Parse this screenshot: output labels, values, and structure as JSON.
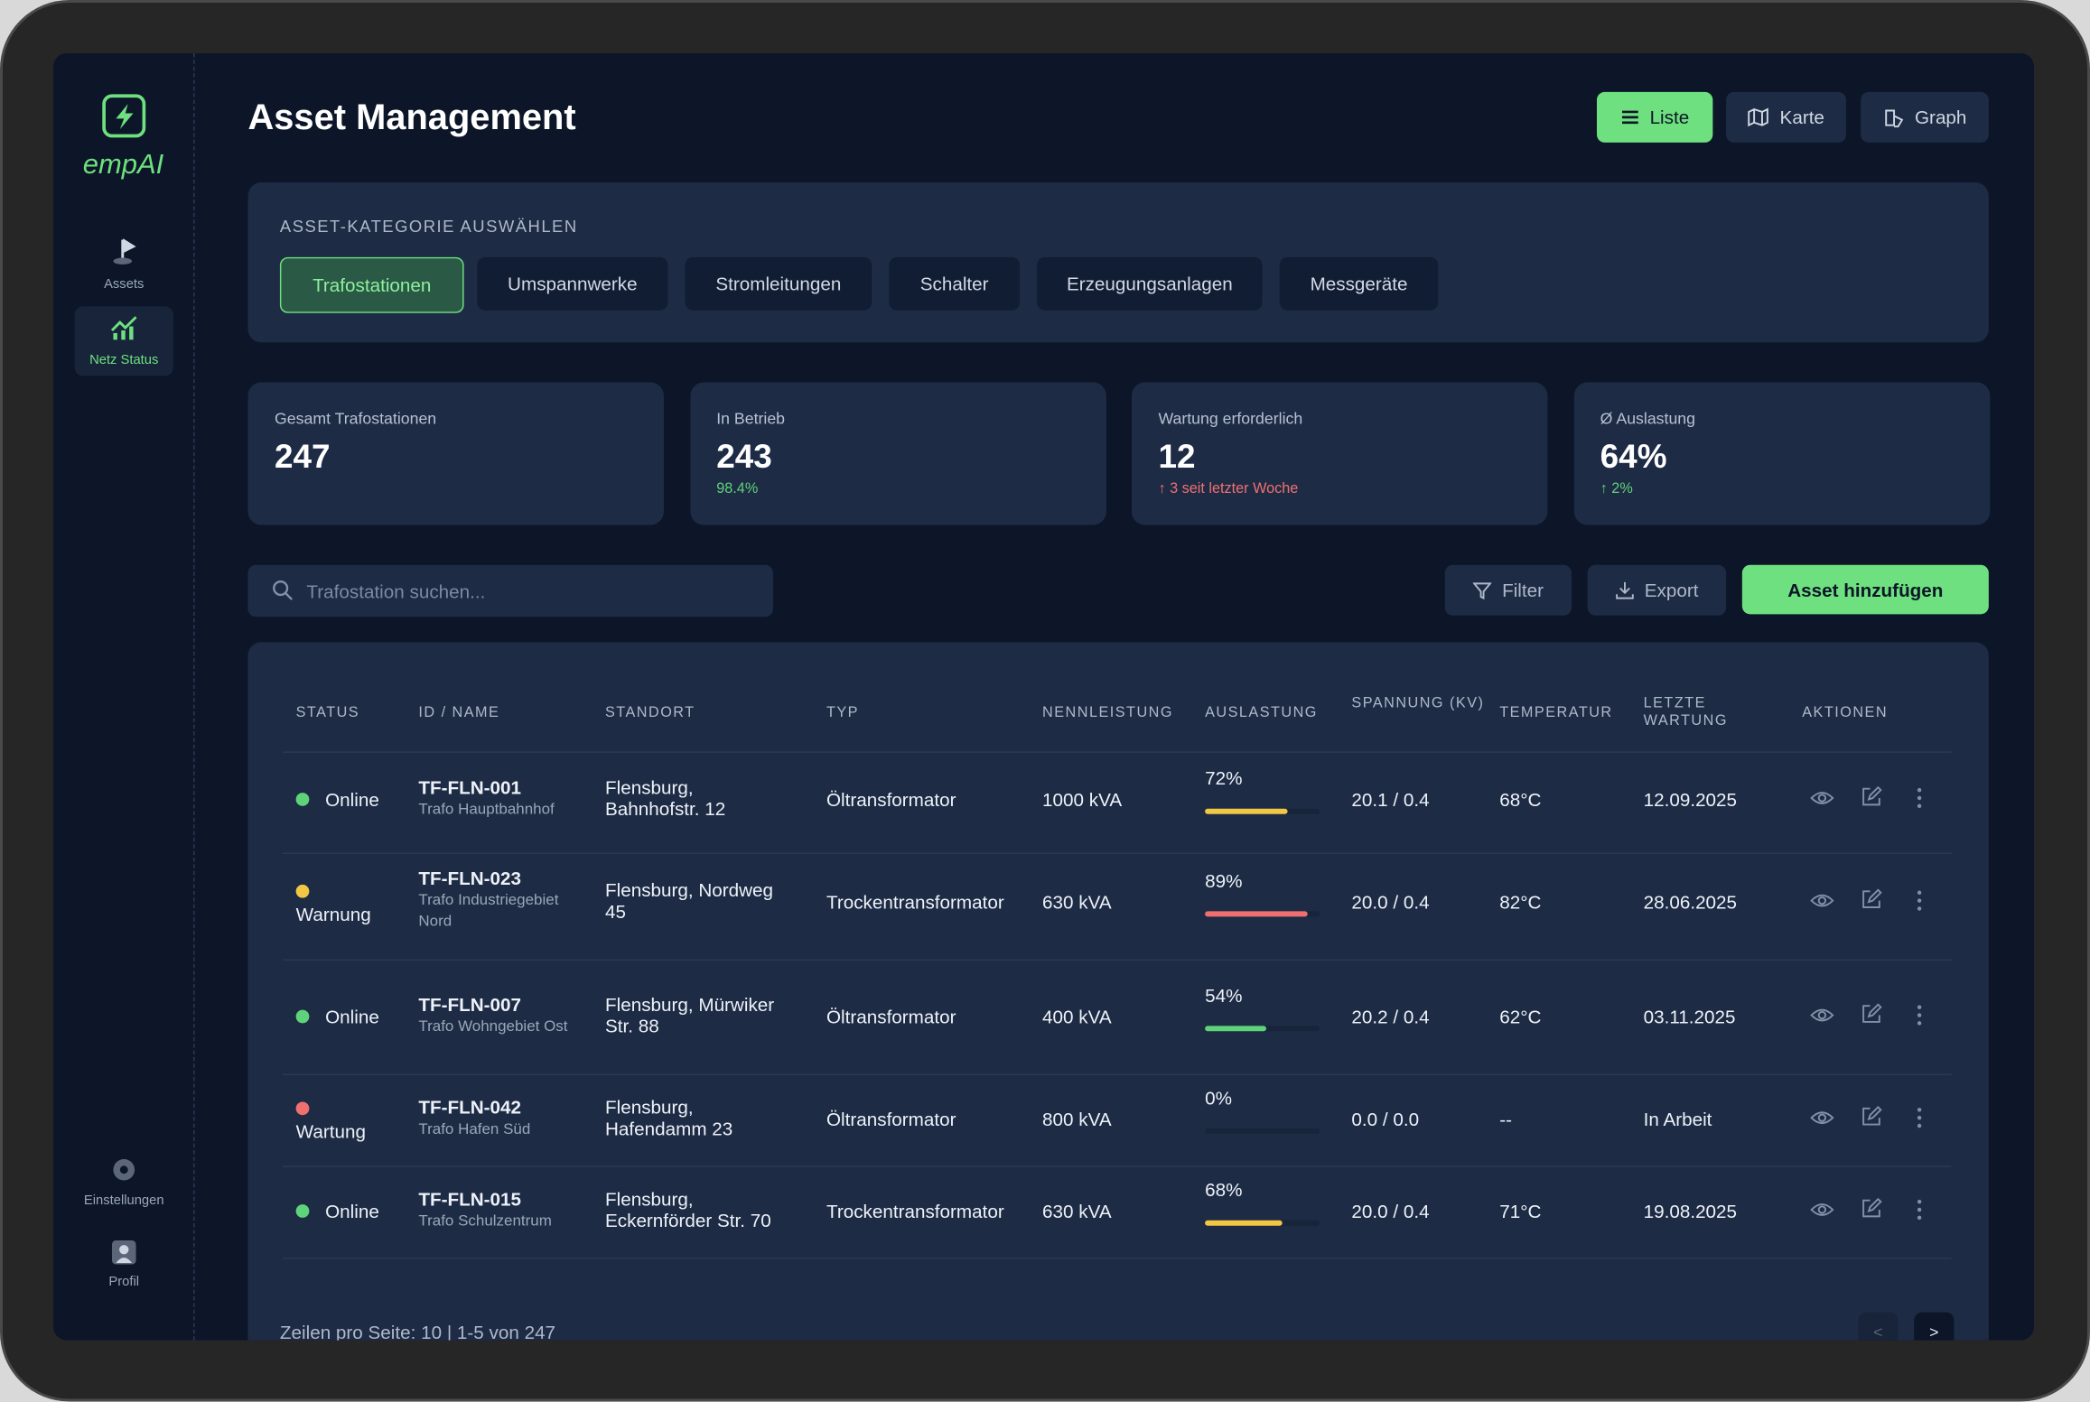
{
  "brand": "empAI",
  "nav": {
    "top": [
      "Assets",
      "Netz Status"
    ],
    "bottom": [
      "Einstellungen",
      "Profil"
    ]
  },
  "header": {
    "title": "Asset Management",
    "views": [
      "Liste",
      "Karte",
      "Graph"
    ]
  },
  "category": {
    "heading": "ASSET-KATEGORIE AUSWÄHLEN",
    "options": [
      "Trafostationen",
      "Umspannwerke",
      "Stromleitungen",
      "Schalter",
      "Erzeugungsanlagen",
      "Messgeräte"
    ]
  },
  "stats": [
    {
      "label": "Gesamt Trafostationen",
      "value": "247"
    },
    {
      "label": "In Betrieb",
      "value": "243",
      "note": "98.4%",
      "note_color": "#5fd37a"
    },
    {
      "label": "Wartung erforderlich",
      "value": "12",
      "note": "↑ 3 seit letzter Woche",
      "note_color": "#f07070"
    },
    {
      "label": "Ø Auslastung",
      "value": "64%",
      "note": "↑ 2%",
      "note_color": "#5fd37a"
    }
  ],
  "toolbar": {
    "search_placeholder": "Trafostation suchen...",
    "filter": "Filter",
    "export": "Export",
    "add": "Asset hinzufügen"
  },
  "table": {
    "columns": [
      "STATUS",
      "ID / NAME",
      "STANDORT",
      "TYP",
      "NENNLEISTUNG",
      "AUSLASTUNG",
      "SPANNUNG (KV)",
      "TEMPERATUR",
      "LETZTE WARTUNG",
      "AKTIONEN"
    ],
    "rows": [
      {
        "status": "Online",
        "color": "#5fd37a",
        "id": "TF-FLN-001",
        "name": "Trafo Hauptbahnhof",
        "location": "Flensburg, Bahnhofstr. 12",
        "type": "Öltransformator",
        "rating": "1000 kVA",
        "load": "72%",
        "load_color": "#f2c744",
        "voltage": "20.1 / 0.4",
        "temp": "68°C",
        "maintenance": "12.09.2025"
      },
      {
        "status": "Warnung",
        "color": "#f2c744",
        "id": "TF-FLN-023",
        "name": "Trafo Industriegebiet Nord",
        "location": "Flensburg, Nordweg 45",
        "type": "Trockentransformator",
        "rating": "630 kVA",
        "load": "89%",
        "load_color": "#f07070",
        "voltage": "20.0 / 0.4",
        "temp": "82°C",
        "maintenance": "28.06.2025"
      },
      {
        "status": "Online",
        "color": "#5fd37a",
        "id": "TF-FLN-007",
        "name": "Trafo Wohngebiet Ost",
        "location": "Flensburg, Mürwiker Str. 88",
        "type": "Öltransformator",
        "rating": "400 kVA",
        "load": "54%",
        "load_color": "#5fd37a",
        "voltage": "20.2 / 0.4",
        "temp": "62°C",
        "maintenance": "03.11.2025"
      },
      {
        "status": "Wartung",
        "color": "#f07070",
        "id": "TF-FLN-042",
        "name": "Trafo Hafen Süd",
        "location": "Flensburg, Hafendamm 23",
        "type": "Öltransformator",
        "rating": "800 kVA",
        "load": "0%",
        "load_color": "#5fd37a",
        "voltage": "0.0 / 0.0",
        "temp": "--",
        "maintenance": "In Arbeit"
      },
      {
        "status": "Online",
        "color": "#5fd37a",
        "id": "TF-FLN-015",
        "name": "Trafo Schulzentrum",
        "location": "Flensburg, Eckernförder Str. 70",
        "type": "Trockentransformator",
        "rating": "630 kVA",
        "load": "68%",
        "load_color": "#f2c744",
        "voltage": "20.0 / 0.4",
        "temp": "71°C",
        "maintenance": "19.08.2025"
      }
    ]
  },
  "footer": {
    "pagination": "Zeilen pro Seite: 10 | 1-5 von 247",
    "prev": "<",
    "next": ">"
  }
}
